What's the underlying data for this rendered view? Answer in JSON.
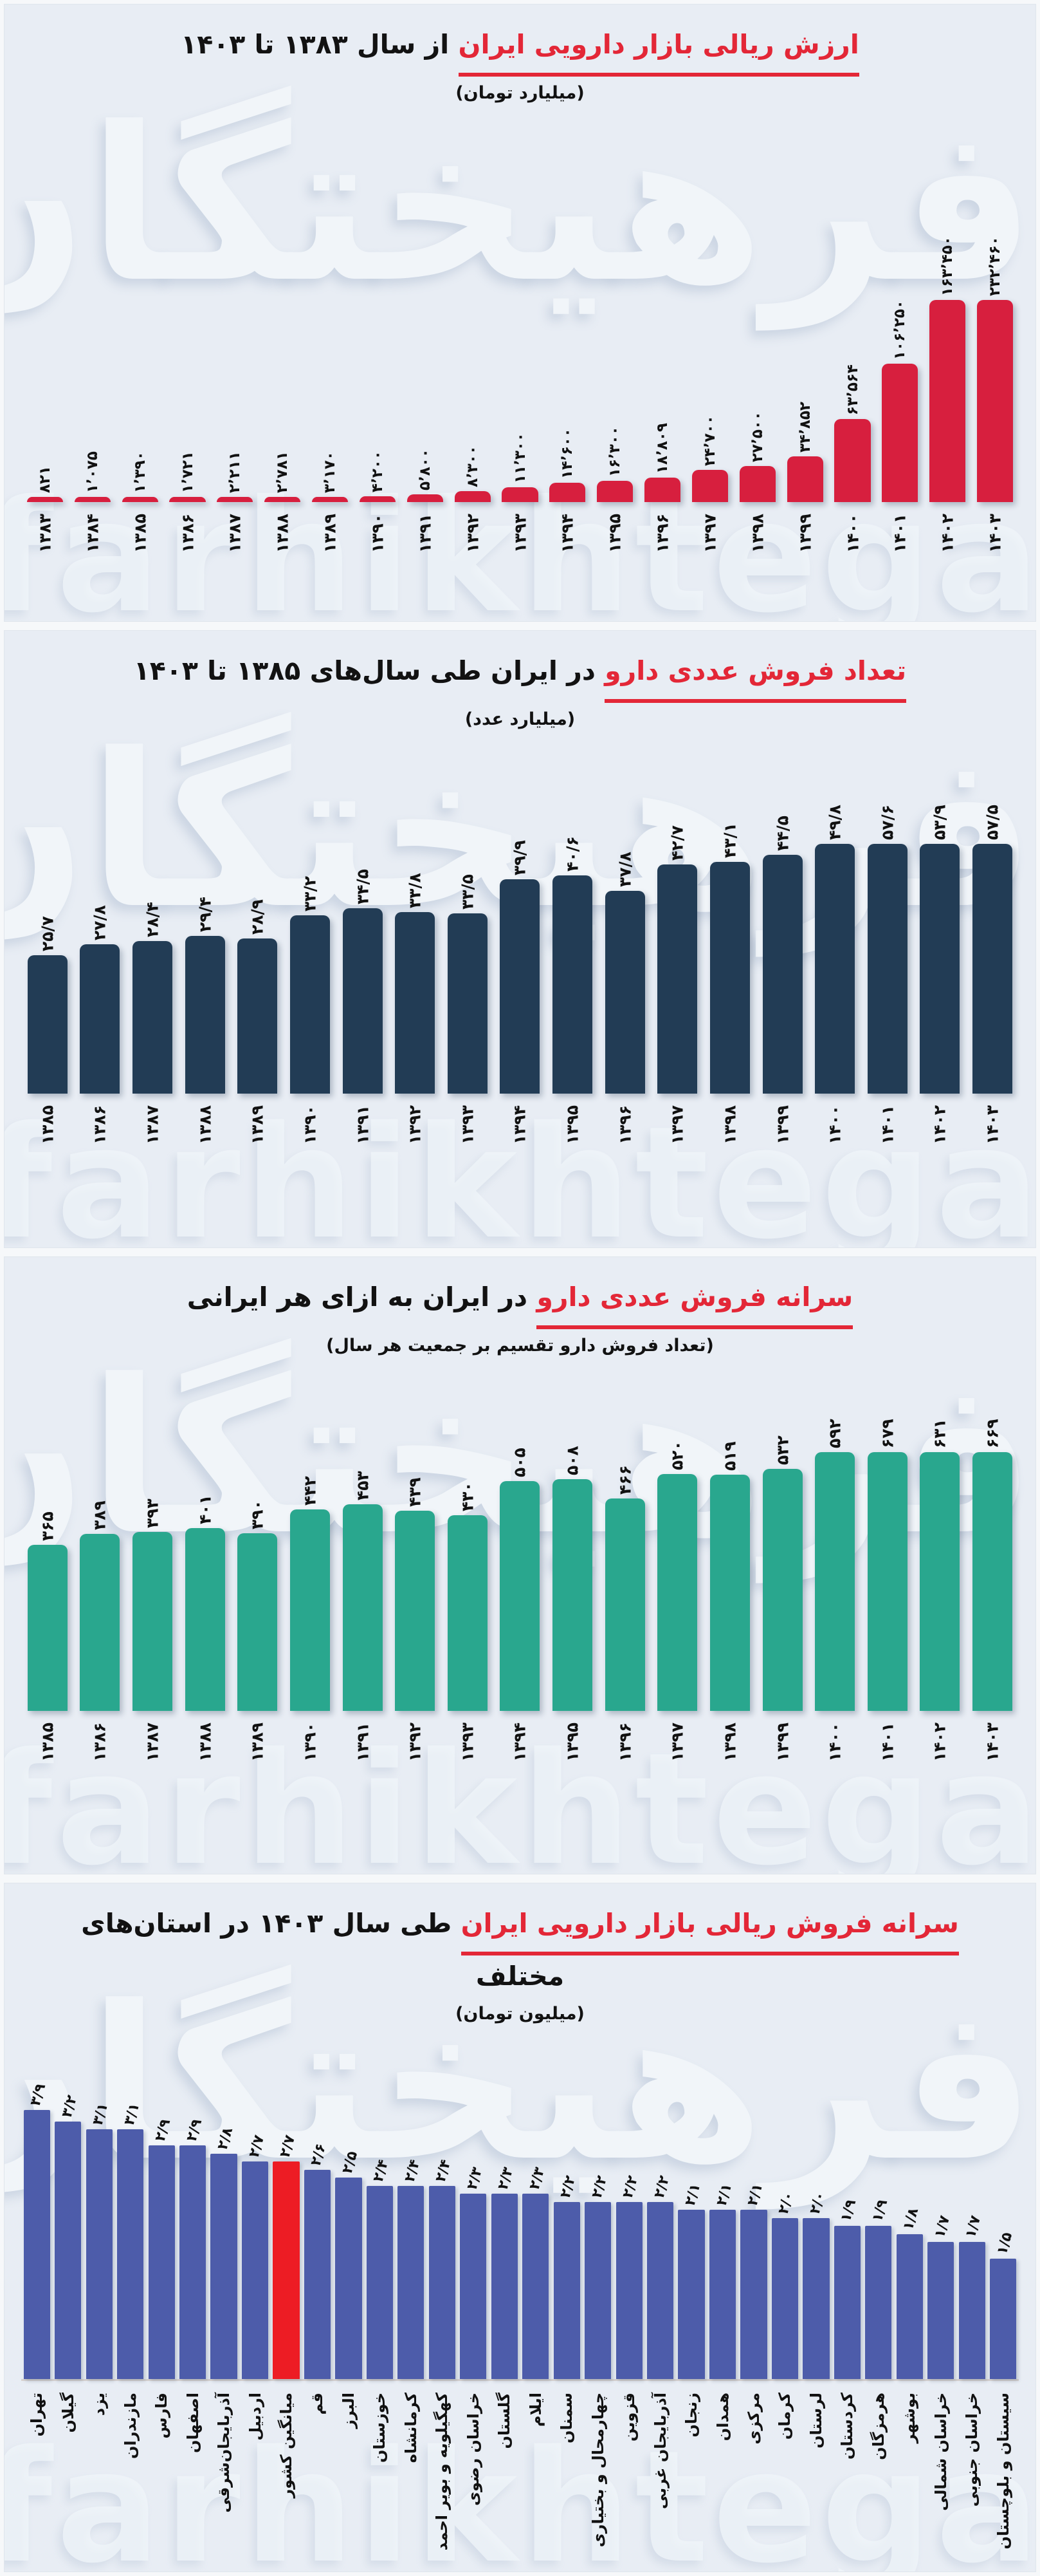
{
  "page": {
    "watermark_fa": "فرهیختگان",
    "watermark_en": "farhikhtegan"
  },
  "chart_data": [
    {
      "type": "bar",
      "title_red": "ارزش ریالی بازار دارویی ایران",
      "title_rest": "از سال ۱۳۸۳ تا ۱۴۰۳",
      "subtitle": "(میلیارد تومان)",
      "bar_color": "#d71f3e",
      "ylim": [
        0,
        232460
      ],
      "categories": [
        "۱۳۸۳",
        "۱۳۸۴",
        "۱۳۸۵",
        "۱۳۸۶",
        "۱۳۸۷",
        "۱۳۸۸",
        "۱۳۸۹",
        "۱۳۹۰",
        "۱۳۹۱",
        "۱۳۹۲",
        "۱۳۹۳",
        "۱۳۹۴",
        "۱۳۹۵",
        "۱۳۹۶",
        "۱۳۹۷",
        "۱۳۹۸",
        "۱۳۹۹",
        "۱۴۰۰",
        "۱۴۰۱",
        "۱۴۰۲",
        "۱۴۰۳"
      ],
      "values": [
        821,
        1075,
        1390,
        1721,
        2211,
        2781,
        3170,
        4200,
        5800,
        8300,
        11300,
        14600,
        16300,
        18809,
        24700,
        27500,
        34852,
        63564,
        106250,
        163450,
        232460
      ],
      "labels": [
        "۸۲۱",
        "۱٬۰۷۵",
        "۱٬۳۹۰",
        "۱٬۷۲۱",
        "۲٬۲۱۱",
        "۲٬۷۸۱",
        "۳٬۱۷۰",
        "۴٬۲۰۰",
        "۵٬۸۰۰",
        "۸٬۳۰۰",
        "۱۱٬۳۰۰",
        "۱۴٬۶۰۰",
        "۱۶٬۳۰۰",
        "۱۸٬۸۰۹",
        "۲۴٬۷۰۰",
        "۲۷٬۵۰۰",
        "۳۴٬۸۵۲",
        "۶۳٬۵۶۴",
        "۱۰۶٬۲۵۰",
        "۱۶۳٬۴۵۰",
        "۲۳۲٬۴۶۰"
      ]
    },
    {
      "type": "bar",
      "title_red": "تعداد فروش عددی دارو",
      "title_rest": "در ایران طی سال‌های ۱۳۸۵ تا ۱۴۰۳",
      "subtitle": "(میلیارد عدد)",
      "bar_color": "#223c55",
      "ylim": [
        0,
        57.6
      ],
      "categories": [
        "۱۳۸۵",
        "۱۳۸۶",
        "۱۳۸۷",
        "۱۳۸۸",
        "۱۳۸۹",
        "۱۳۹۰",
        "۱۳۹۱",
        "۱۳۹۲",
        "۱۳۹۳",
        "۱۳۹۴",
        "۱۳۹۵",
        "۱۳۹۶",
        "۱۳۹۷",
        "۱۳۹۸",
        "۱۳۹۹",
        "۱۴۰۰",
        "۱۴۰۱",
        "۱۴۰۲",
        "۱۴۰۳"
      ],
      "values": [
        25.7,
        27.8,
        28.4,
        29.4,
        28.9,
        33.2,
        34.5,
        33.8,
        33.5,
        39.9,
        40.6,
        37.8,
        42.7,
        43.1,
        44.5,
        49.8,
        57.6,
        53.9,
        57.5
      ],
      "labels": [
        "۲۵/۷",
        "۲۷/۸",
        "۲۸/۴",
        "۲۹/۴",
        "۲۸/۹",
        "۳۳/۲",
        "۳۴/۵",
        "۳۳/۸",
        "۳۳/۵",
        "۳۹/۹",
        "۴۰/۶",
        "۳۷/۸",
        "۴۲/۷",
        "۴۳/۱",
        "۴۴/۵",
        "۴۹/۸",
        "۵۷/۶",
        "۵۳/۹",
        "۵۷/۵"
      ]
    },
    {
      "type": "bar",
      "title_red": "سرانه فروش عددی دارو",
      "title_rest": "در ایران به ازای هر ایرانی",
      "subtitle": "(تعداد فروش دارو تقسیم بر جمعیت هر سال)",
      "bar_color": "#29a78e",
      "ylim": [
        0,
        679
      ],
      "categories": [
        "۱۳۸۵",
        "۱۳۸۶",
        "۱۳۸۷",
        "۱۳۸۸",
        "۱۳۸۹",
        "۱۳۹۰",
        "۱۳۹۱",
        "۱۳۹۲",
        "۱۳۹۳",
        "۱۳۹۴",
        "۱۳۹۵",
        "۱۳۹۶",
        "۱۳۹۷",
        "۱۳۹۸",
        "۱۳۹۹",
        "۱۴۰۰",
        "۱۴۰۱",
        "۱۴۰۲",
        "۱۴۰۳"
      ],
      "values": [
        365,
        389,
        393,
        401,
        390,
        442,
        453,
        439,
        430,
        505,
        508,
        466,
        520,
        519,
        532,
        592,
        679,
        631,
        669
      ],
      "labels": [
        "۳۶۵",
        "۳۸۹",
        "۳۹۳",
        "۴۰۱",
        "۳۹۰",
        "۴۴۲",
        "۴۵۳",
        "۴۳۹",
        "۴۳۰",
        "۵۰۵",
        "۵۰۸",
        "۴۶۶",
        "۵۲۰",
        "۵۱۹",
        "۵۳۲",
        "۵۹۲",
        "۶۷۹",
        "۶۳۱",
        "۶۶۹"
      ]
    },
    {
      "type": "bar",
      "title_red": "سرانه فروش ریالی بازار دارویی ایران",
      "title_rest": "طی سال ۱۴۰۳ در استان‌های مختلف",
      "subtitle": "(میلیون تومان)",
      "bar_color": "#4d5caa",
      "highlight_index": 8,
      "highlight_color": "#ed1c24",
      "ylim": [
        0,
        3.9
      ],
      "categories": [
        "تهران",
        "گیلان",
        "یزد",
        "مازندران",
        "فارس",
        "اصفهان",
        "آذربایجان‌شرقی",
        "اردبیل",
        "میانگین کشور",
        "قم",
        "البرز",
        "خوزستان",
        "کرمانشاه",
        "کهگیلویه و بویر احمد",
        "خراسان رضوی",
        "گلستان",
        "ایلام",
        "سمنان",
        "چهارمحال و بختیاری",
        "قزوین",
        "آذربایجان غربی",
        "زنجان",
        "همدان",
        "مرکزی",
        "کرمان",
        "لرستان",
        "کردستان",
        "هرمزگان",
        "بوشهر",
        "خراسان شمالی",
        "خراسان جنوبی",
        "سیستان و بلوچستان"
      ],
      "values": [
        3.9,
        3.2,
        3.1,
        3.1,
        2.9,
        2.9,
        2.8,
        2.7,
        2.7,
        2.6,
        2.5,
        2.4,
        2.4,
        2.4,
        2.3,
        2.3,
        2.3,
        2.2,
        2.2,
        2.2,
        2.2,
        2.1,
        2.1,
        2.1,
        2.0,
        2.0,
        1.9,
        1.9,
        1.8,
        1.7,
        1.7,
        1.5
      ],
      "labels": [
        "۳/۹",
        "۳/۲",
        "۳/۱",
        "۳/۱",
        "۲/۹",
        "۲/۹",
        "۲/۸",
        "۲/۷",
        "۲/۷",
        "۲/۶",
        "۲/۵",
        "۲/۴",
        "۲/۴",
        "۲/۴",
        "۲/۳",
        "۲/۳",
        "۲/۳",
        "۲/۲",
        "۲/۲",
        "۲/۲",
        "۲/۲",
        "۲/۱",
        "۲/۱",
        "۲/۱",
        "۲/۰",
        "۲/۰",
        "۱/۹",
        "۱/۹",
        "۱/۸",
        "۱/۷",
        "۱/۷",
        "۱/۵"
      ]
    }
  ]
}
